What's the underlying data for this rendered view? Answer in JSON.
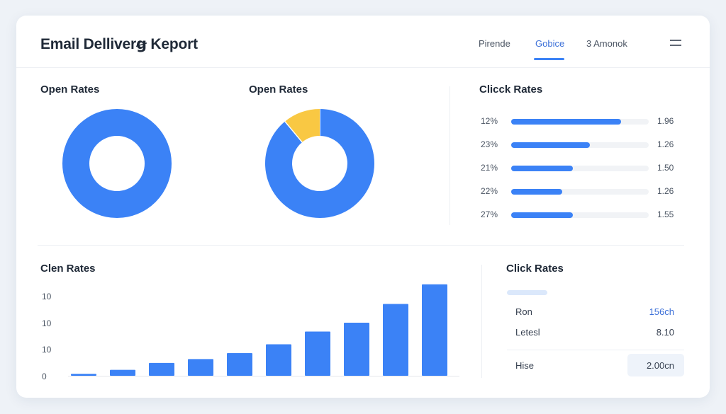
{
  "header": {
    "title": "Email Delliverꞡ Keport",
    "tabs": [
      {
        "label": "Pirende",
        "active": false
      },
      {
        "label": "Gobice",
        "active": true
      },
      {
        "label": "3 Amonok",
        "active": false
      }
    ],
    "menu_icon": "hamburger-menu-icon"
  },
  "colors": {
    "accent": "#3b82f6",
    "secondary": "#f9c843",
    "track": "#f1f3f6"
  },
  "chart_data": [
    {
      "type": "pie",
      "title": "Open Rates",
      "variant": "donut",
      "slices": [
        {
          "value": 100,
          "color": "#3b82f6"
        }
      ]
    },
    {
      "type": "pie",
      "title": "Open Rates",
      "variant": "donut",
      "slices": [
        {
          "value": 89,
          "color": "#3b82f6"
        },
        {
          "value": 11,
          "color": "#f9c843"
        }
      ]
    },
    {
      "type": "bar",
      "orientation": "horizontal",
      "title": "Clicck Rates",
      "rows": [
        {
          "label": "12%",
          "fraction": 0.8,
          "value": "1.96"
        },
        {
          "label": "23%",
          "fraction": 0.57,
          "value": "1.26"
        },
        {
          "label": "21%",
          "fraction": 0.45,
          "value": "1.50"
        },
        {
          "label": "22%",
          "fraction": 0.37,
          "value": "1.26"
        },
        {
          "label": "27%",
          "fraction": 0.45,
          "value": "1.55"
        }
      ]
    },
    {
      "type": "bar",
      "title": "Clen Rates",
      "ytick_labels": [
        "10",
        "10",
        "10",
        "0"
      ],
      "ylim": [
        0,
        10
      ],
      "values": [
        0.2,
        0.6,
        1.3,
        1.7,
        2.3,
        3.2,
        4.5,
        5.4,
        7.3,
        9.3
      ],
      "grid": false
    }
  ],
  "click_panel": {
    "title": "Click Rates",
    "rows": [
      {
        "label": "Ron",
        "value": "156ch",
        "highlight": true
      },
      {
        "label": "Letesl",
        "value": "8.10",
        "highlight": false
      },
      {
        "label": "Hise",
        "value": "2.00cn",
        "highlight": false
      }
    ]
  }
}
